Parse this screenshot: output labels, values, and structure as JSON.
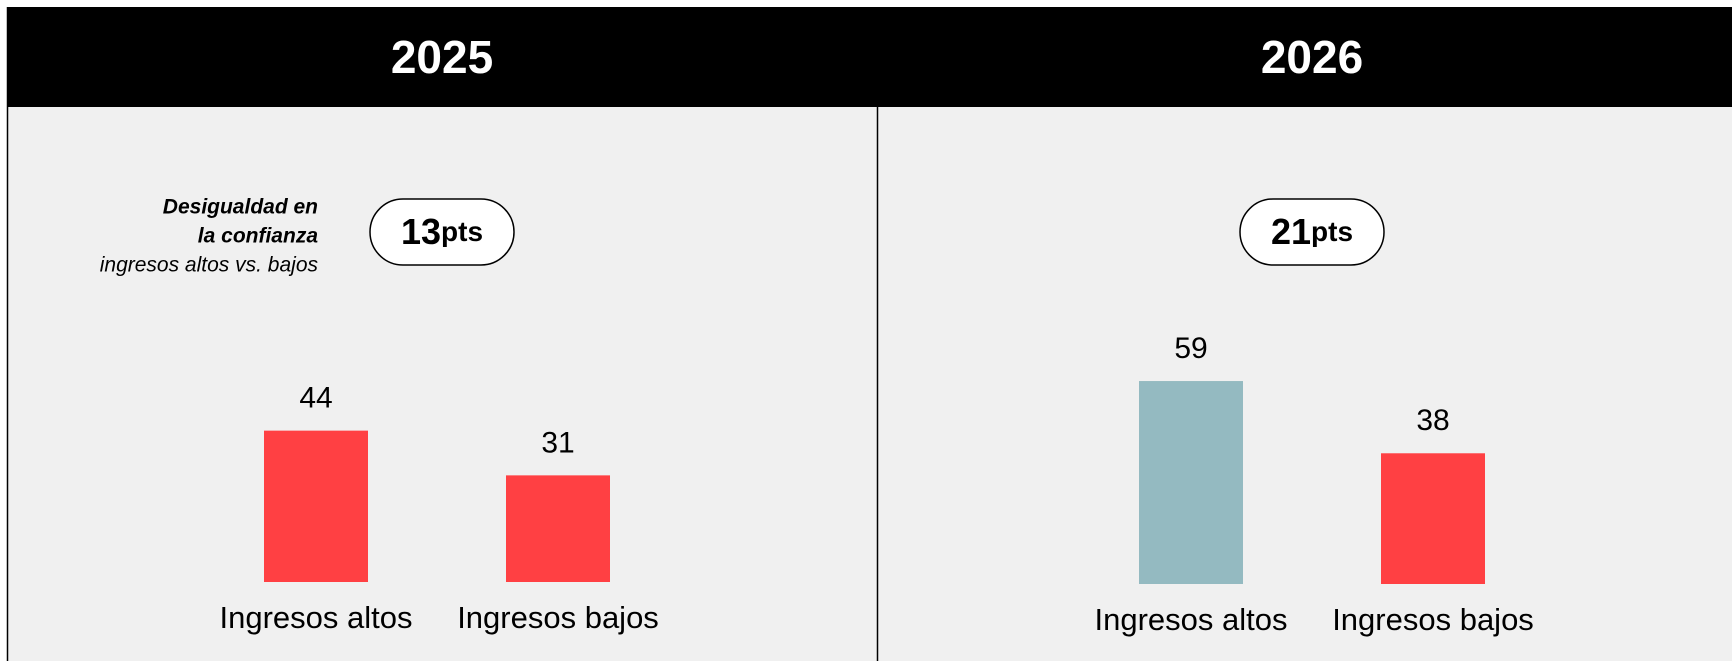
{
  "chart_data": [
    {
      "type": "bar",
      "title": "2025",
      "annotation": [
        "Desigualdad en",
        "la confianza",
        "ingresos altos vs. bajos"
      ],
      "badge_number": 13,
      "badge_unit": "pts",
      "categories": [
        "Ingresos altos",
        "Ingresos bajos"
      ],
      "values": [
        44,
        31
      ],
      "colors": [
        "#ff4043",
        "#ff4043"
      ]
    },
    {
      "type": "bar",
      "title": "2026",
      "badge_number": 21,
      "badge_unit": "pts",
      "categories": [
        "Ingresos altos",
        "Ingresos bajos"
      ],
      "values": [
        59,
        38
      ],
      "colors": [
        "#94bac1",
        "#ff4043"
      ]
    }
  ]
}
